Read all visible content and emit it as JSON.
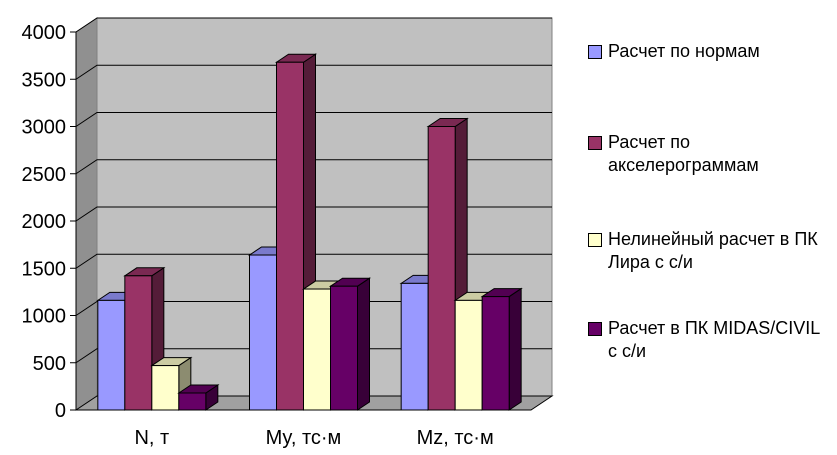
{
  "chart_data": {
    "type": "bar",
    "title": "",
    "xlabel": "",
    "ylabel": "",
    "categories": [
      "N, т",
      "My, тс·м",
      "Mz, тс·м"
    ],
    "ylim": [
      0,
      4000
    ],
    "yticks": [
      "0",
      "500",
      "1000",
      "1500",
      "2000",
      "2500",
      "3000",
      "3500",
      "4000"
    ],
    "grid": true,
    "legend_position": "right",
    "series": [
      {
        "name": "Расчет по нормам",
        "color": "#9999ff",
        "values": [
          1160,
          1640,
          1340
        ]
      },
      {
        "name": "Расчет по акселерограммам",
        "color": "#993366",
        "values": [
          1420,
          3680,
          3000
        ]
      },
      {
        "name": "Нелинейный расчет в ПК Лира с с/и",
        "color": "#ffffcc",
        "values": [
          470,
          1280,
          1160
        ]
      },
      {
        "name": "Расчет в ПК MIDAS/CIVIL с с/и",
        "color": "#660066",
        "values": [
          180,
          1310,
          1200
        ]
      }
    ]
  }
}
